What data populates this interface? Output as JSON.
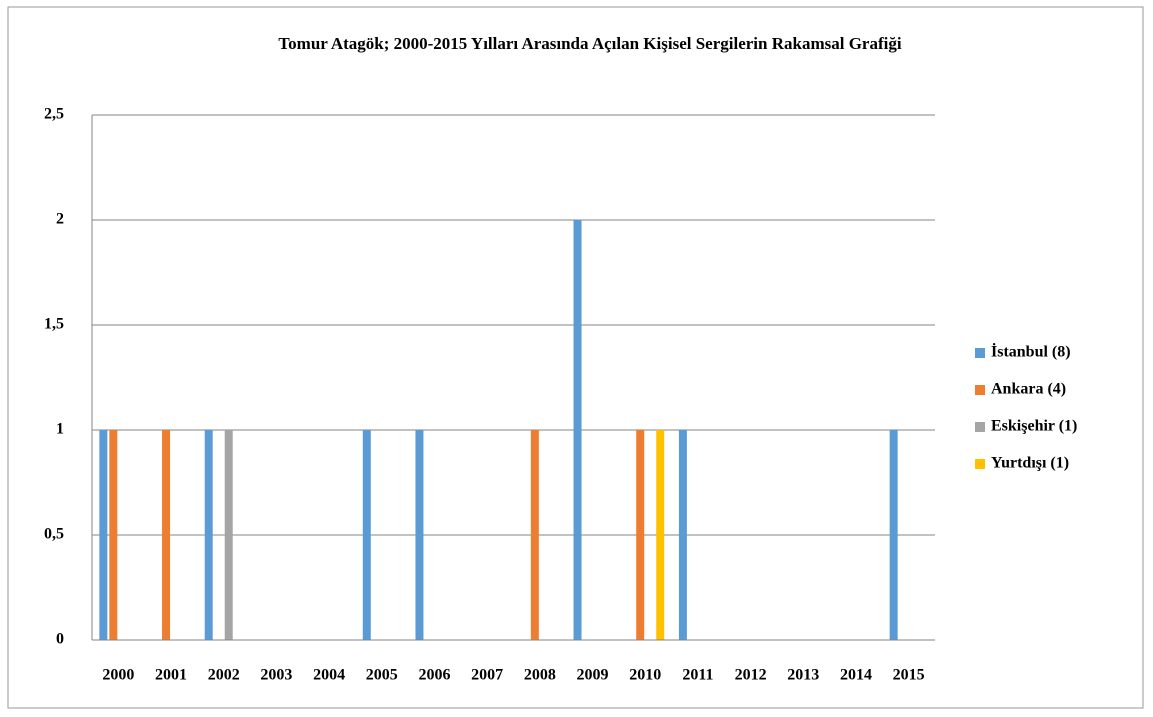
{
  "chart_data": {
    "type": "bar",
    "title": "Tomur Atagök;  2000-2015 Yılları Arasında Açılan Kişisel Sergilerin Rakamsal Grafiği",
    "categories": [
      "2000",
      "2001",
      "2002",
      "2003",
      "2004",
      "2005",
      "2006",
      "2007",
      "2008",
      "2009",
      "2010",
      "2011",
      "2012",
      "2013",
      "2014",
      "2015"
    ],
    "series": [
      {
        "name": "İstanbul (8)",
        "color": "#5b9bd5",
        "values": [
          1,
          0,
          1,
          0,
          0,
          1,
          1,
          0,
          0,
          2,
          0,
          1,
          0,
          0,
          0,
          1
        ]
      },
      {
        "name": "Ankara (4)",
        "color": "#ed7d31",
        "values": [
          1,
          1,
          0,
          0,
          0,
          0,
          0,
          0,
          1,
          0,
          1,
          0,
          0,
          0,
          0,
          0
        ]
      },
      {
        "name": "Eskişehir (1)",
        "color": "#a5a5a5",
        "values": [
          0,
          0,
          1,
          0,
          0,
          0,
          0,
          0,
          0,
          0,
          0,
          0,
          0,
          0,
          0,
          0
        ]
      },
      {
        "name": "Yurtdışı (1)",
        "color": "#ffc000",
        "values": [
          0,
          0,
          0,
          0,
          0,
          0,
          0,
          0,
          0,
          0,
          1,
          0,
          0,
          0,
          0,
          0
        ]
      }
    ],
    "ylim": [
      0,
      2.5
    ],
    "yticks": [
      0,
      {
        "value": 0.5,
        "label": "0,5"
      },
      1,
      {
        "value": 1.5,
        "label": "1,5"
      },
      2,
      {
        "value": 2.5,
        "label": "2,5"
      }
    ],
    "grid": true,
    "legend": "right"
  }
}
